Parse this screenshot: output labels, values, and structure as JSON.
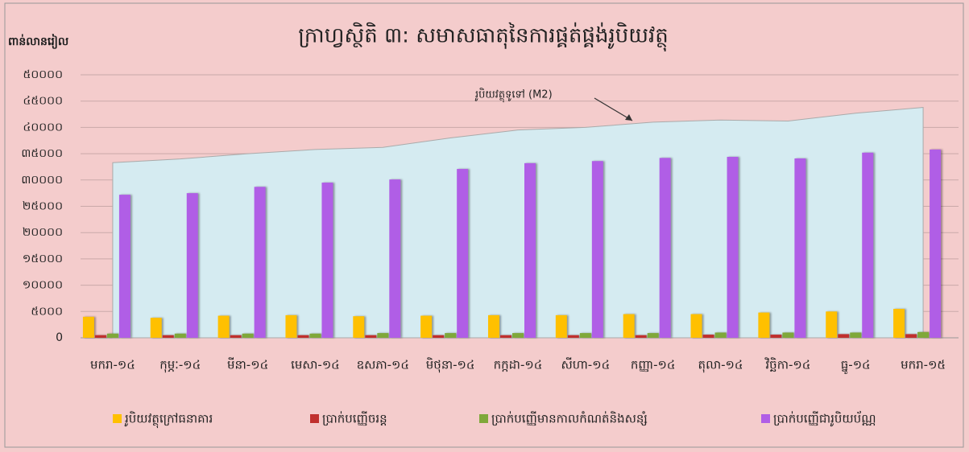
{
  "chart_data": {
    "type": "bar",
    "title": "ក្រាហ្វស្ថិតិ ៣: សមាសធាតុនៃការផ្គត់ផ្គង់រូបិយវត្ថុ",
    "y_label": "ពាន់លានរៀល",
    "categories": [
      "មករា-១៤",
      "កុម្ភៈ-១៤",
      "មីនា-១៤",
      "មេសា-១៤",
      "ឧសភា-១៤",
      "មិថុនា-១៤",
      "កក្កដា-១៤",
      "សីហា-១៤",
      "កញ្ញា-១៤",
      "តុលា-១៤",
      "វិច្ឆិកា-១៤",
      "ធ្នូ-១៤",
      "មករា-១៥"
    ],
    "area": {
      "name": "រូបិយវត្ថុទូទៅ (M2)",
      "color": "#d5ebf1",
      "values": [
        33300,
        34000,
        35000,
        35800,
        36200,
        38000,
        39500,
        40000,
        41000,
        41400,
        41200,
        42700,
        43800
      ]
    },
    "series": [
      {
        "name": "រូបិយវត្ថុក្រៅធនាគារ",
        "color": "#ffc000",
        "values": [
          4000,
          3800,
          4200,
          4300,
          4100,
          4200,
          4300,
          4300,
          4500,
          4500,
          4800,
          5000,
          5500
        ]
      },
      {
        "name": "ប្រាក់បញ្ញើចរន្ត",
        "color": "#c0302e",
        "values": [
          500,
          500,
          500,
          500,
          500,
          500,
          500,
          500,
          500,
          600,
          600,
          700,
          700
        ]
      },
      {
        "name": "ប្រាក់បញ្ញើមានកាលកំណត់និងសន្សំ",
        "color": "#7fa83a",
        "values": [
          800,
          800,
          800,
          800,
          900,
          900,
          900,
          900,
          900,
          1000,
          1000,
          1000,
          1100
        ]
      },
      {
        "name": "ប្រាក់បញ្ញើជារូបិយប័ណ្ណ",
        "color": "#b05ee6",
        "values": [
          27200,
          27500,
          28700,
          29500,
          30100,
          32100,
          33200,
          33600,
          34200,
          34400,
          34100,
          35200,
          35800
        ]
      }
    ],
    "ylim": [
      0,
      50000
    ],
    "yticks": [
      {
        "value": 0,
        "label": "0"
      },
      {
        "value": 5000,
        "label": "៥០០០"
      },
      {
        "value": 10000,
        "label": "១០០០០"
      },
      {
        "value": 15000,
        "label": "១៥០០០"
      },
      {
        "value": 20000,
        "label": "២០០០០"
      },
      {
        "value": 25000,
        "label": "២៥០០០"
      },
      {
        "value": 30000,
        "label": "៣០០០០"
      },
      {
        "value": 35000,
        "label": "៣៥០០០"
      },
      {
        "value": 40000,
        "label": "៤០០០០"
      },
      {
        "value": 45000,
        "label": "៤៥០០០"
      },
      {
        "value": 50000,
        "label": "៥០០០០"
      }
    ],
    "grid": true
  }
}
